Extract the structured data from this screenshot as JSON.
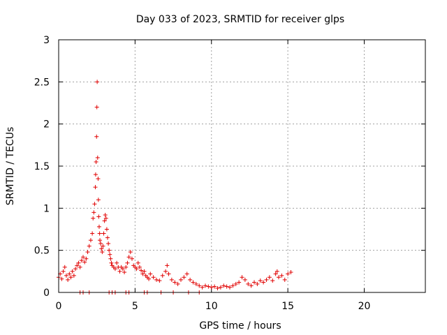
{
  "chart_data": {
    "type": "scatter",
    "title": "Day 033 of 2023, SRMTID for receiver glps",
    "xlabel": "GPS time / hours",
    "ylabel": "SRMTID / TECUs",
    "xlim": [
      0,
      24
    ],
    "ylim": [
      0,
      3
    ],
    "xticks": [
      0,
      5,
      10,
      15,
      20
    ],
    "yticks": [
      0,
      0.5,
      1,
      1.5,
      2,
      2.5,
      3
    ],
    "xtick_labels": [
      "0",
      "5",
      "10",
      "15",
      "20"
    ],
    "ytick_labels": [
      "0",
      "0.5",
      "1",
      "1.5",
      "2",
      "2.5",
      "3"
    ],
    "grid": true,
    "marker": "plus",
    "color": "#e00000",
    "series": [
      {
        "name": "SRMTID",
        "x": [
          0.0,
          0.1,
          0.2,
          0.3,
          0.4,
          0.5,
          0.6,
          0.7,
          0.8,
          0.9,
          1.0,
          1.1,
          1.2,
          1.3,
          1.4,
          1.5,
          1.6,
          1.7,
          1.8,
          1.9,
          2.0,
          2.1,
          2.2,
          2.25,
          2.3,
          2.35,
          2.4,
          2.42,
          2.45,
          2.48,
          2.5,
          2.52,
          2.55,
          2.58,
          2.6,
          2.62,
          2.65,
          2.68,
          2.7,
          2.75,
          2.8,
          2.85,
          2.9,
          2.95,
          3.0,
          3.05,
          3.1,
          3.15,
          3.2,
          3.25,
          3.3,
          3.35,
          3.4,
          3.45,
          3.5,
          3.6,
          3.7,
          3.8,
          3.9,
          4.0,
          4.1,
          4.2,
          4.3,
          4.4,
          4.5,
          4.6,
          4.7,
          4.8,
          4.9,
          5.0,
          5.1,
          5.2,
          5.3,
          5.4,
          5.5,
          5.6,
          5.7,
          5.8,
          5.9,
          6.0,
          6.2,
          6.4,
          6.6,
          6.8,
          7.0,
          7.1,
          7.2,
          7.4,
          7.6,
          7.8,
          8.0,
          8.2,
          8.4,
          8.6,
          8.8,
          9.0,
          9.2,
          9.4,
          9.6,
          9.8,
          10.0,
          10.2,
          10.4,
          10.6,
          10.8,
          11.0,
          11.2,
          11.4,
          11.6,
          11.8,
          12.0,
          12.2,
          12.4,
          12.6,
          12.8,
          13.0,
          13.2,
          13.4,
          13.6,
          13.8,
          14.0,
          14.2,
          14.3,
          14.4,
          14.6,
          14.8,
          15.0,
          15.2,
          1.4,
          1.6,
          2.0,
          3.3,
          3.5,
          3.7,
          4.4,
          4.6,
          5.6,
          5.8,
          6.7,
          7.5,
          8.5,
          9.2
        ],
        "y": [
          0.18,
          0.22,
          0.16,
          0.25,
          0.3,
          0.2,
          0.15,
          0.22,
          0.18,
          0.25,
          0.2,
          0.28,
          0.32,
          0.35,
          0.3,
          0.38,
          0.42,
          0.36,
          0.4,
          0.48,
          0.55,
          0.62,
          0.7,
          0.88,
          0.95,
          1.05,
          1.25,
          1.4,
          1.55,
          1.85,
          2.2,
          2.5,
          1.6,
          1.35,
          1.1,
          0.9,
          0.78,
          0.7,
          0.62,
          0.58,
          0.52,
          0.48,
          0.55,
          0.7,
          0.85,
          0.92,
          0.88,
          0.75,
          0.65,
          0.58,
          0.5,
          0.45,
          0.4,
          0.35,
          0.32,
          0.3,
          0.28,
          0.35,
          0.3,
          0.25,
          0.3,
          0.28,
          0.24,
          0.3,
          0.35,
          0.42,
          0.48,
          0.4,
          0.32,
          0.3,
          0.28,
          0.35,
          0.3,
          0.26,
          0.22,
          0.25,
          0.2,
          0.18,
          0.16,
          0.22,
          0.18,
          0.15,
          0.14,
          0.2,
          0.25,
          0.32,
          0.22,
          0.15,
          0.12,
          0.1,
          0.15,
          0.18,
          0.22,
          0.15,
          0.12,
          0.1,
          0.08,
          0.06,
          0.08,
          0.07,
          0.06,
          0.07,
          0.05,
          0.06,
          0.08,
          0.07,
          0.06,
          0.08,
          0.1,
          0.12,
          0.18,
          0.15,
          0.1,
          0.08,
          0.12,
          0.1,
          0.14,
          0.12,
          0.15,
          0.18,
          0.14,
          0.22,
          0.25,
          0.18,
          0.2,
          0.15,
          0.22,
          0.24,
          0.0,
          0.0,
          0.0,
          0.0,
          0.0,
          0.0,
          0.0,
          0.0,
          0.0,
          0.0,
          0.0,
          0.0,
          0.0,
          0.0
        ]
      }
    ]
  }
}
